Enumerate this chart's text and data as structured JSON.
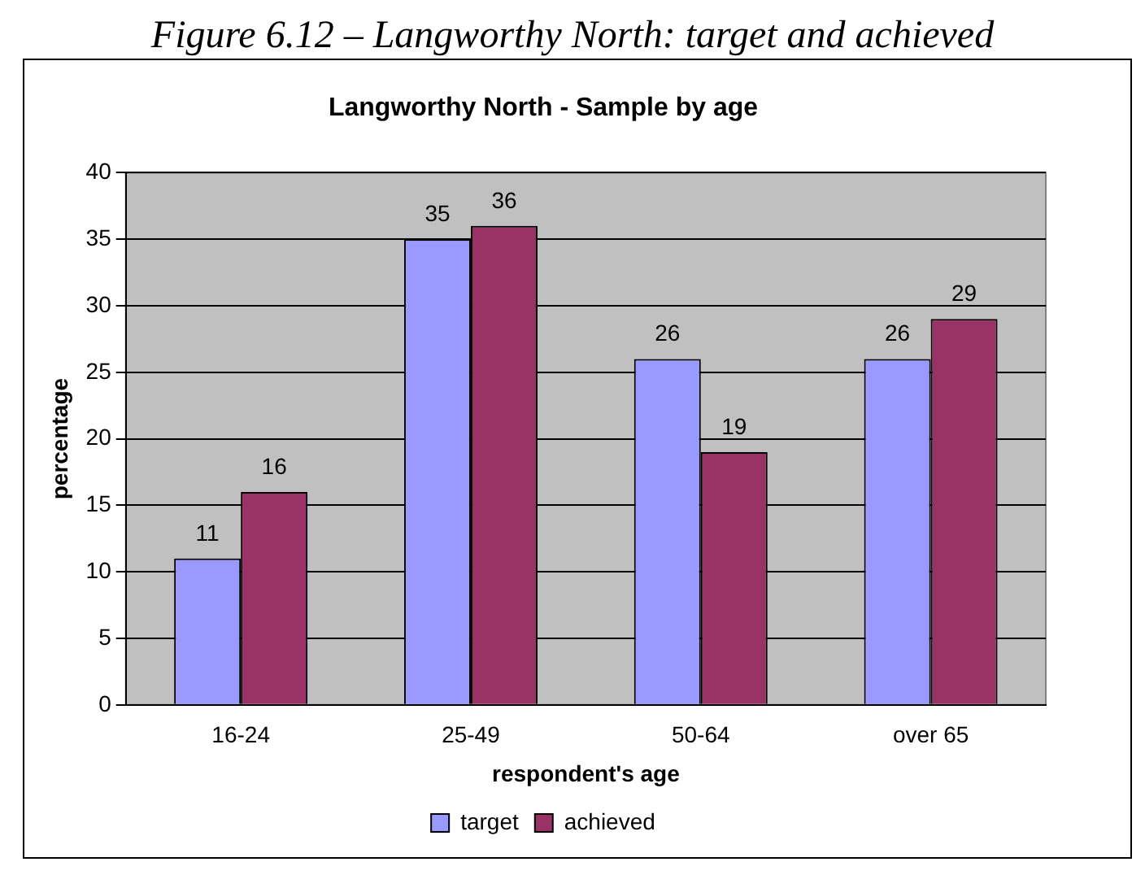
{
  "chart_data": {
    "type": "bar",
    "title": "Langworthy North - Sample by age",
    "xlabel": "respondent's age",
    "ylabel": "percentage",
    "annotations": [
      "Figure 6.12 – Langworthy North: target and achieved"
    ],
    "categories": [
      "16-24",
      "25-49",
      "50-64",
      "over 65"
    ],
    "series": [
      {
        "name": "target",
        "color": "#9999ff",
        "values": [
          11,
          35,
          26,
          26
        ]
      },
      {
        "name": "achieved",
        "color": "#993366",
        "values": [
          16,
          36,
          19,
          29
        ]
      }
    ],
    "ylim": [
      0,
      40
    ],
    "yticks": [
      0,
      5,
      10,
      15,
      20,
      25,
      30,
      35,
      40
    ],
    "grid": "y",
    "legend": "bottom",
    "data_labels": true
  }
}
